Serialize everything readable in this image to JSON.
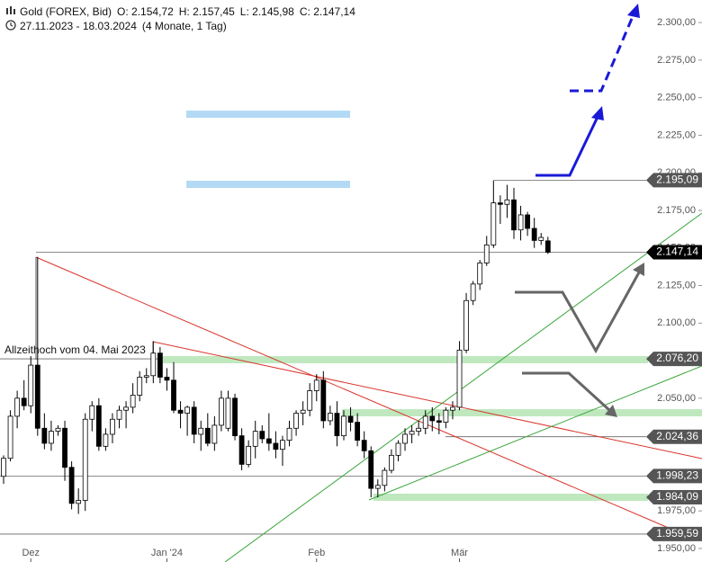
{
  "header": {
    "symbol": "Gold (FOREX, Bid)",
    "open": "O: 2.154,72",
    "high": "H: 2.157,45",
    "low": "L: 2.145,98",
    "close": "C: 2.147,14",
    "range": "27.11.2023 - 18.03.2024",
    "duration": "(4 Monate, 1 Tag)"
  },
  "chart_data": {
    "type": "candlestick",
    "categories": [
      null,
      null,
      null,
      null,
      "Dez",
      null,
      null,
      null,
      null,
      null,
      null,
      null,
      null,
      null,
      null,
      null,
      null,
      null,
      null,
      null,
      null,
      null,
      null,
      null,
      "Jan '24",
      null,
      null,
      null,
      null,
      null,
      null,
      null,
      null,
      null,
      null,
      null,
      null,
      null,
      null,
      null,
      null,
      null,
      null,
      null,
      null,
      null,
      "Feb",
      null,
      null,
      null,
      null,
      null,
      null,
      null,
      null,
      null,
      null,
      null,
      null,
      null,
      null,
      null,
      null,
      null,
      null,
      null,
      null,
      "Mär",
      null,
      null,
      null,
      null,
      null,
      null,
      null,
      null,
      null,
      null,
      null,
      null,
      null
    ],
    "open": [
      1998,
      2010,
      2038,
      2050,
      2045,
      2072,
      2030,
      2020,
      2028,
      2030,
      2004,
      1980,
      1982,
      2036,
      2045,
      2018,
      2026,
      2036,
      2042,
      2044,
      2052,
      2064,
      2065,
      2080,
      2064,
      2062,
      2042,
      2040,
      2044,
      2026,
      2030,
      2020,
      2032,
      2030,
      2050,
      2025,
      2006,
      2018,
      2028,
      2023,
      2020,
      2016,
      2022,
      2030,
      2040,
      2042,
      2055,
      2062,
      2035,
      2040,
      2025,
      2038,
      2034,
      2022,
      2015,
      1990,
      1992,
      2002,
      2012,
      2020,
      2026,
      2028,
      2030,
      2038,
      2035,
      2034,
      2042,
      2044,
      2082,
      2115,
      2126,
      2140,
      2152,
      2180,
      2179,
      2182,
      2162,
      2172,
      2163,
      2155,
      2154.72
    ],
    "high": [
      2012,
      2042,
      2055,
      2062,
      2078,
      2144,
      2040,
      2035,
      2032,
      2035,
      2008,
      1990,
      2040,
      2048,
      2050,
      2030,
      2040,
      2045,
      2048,
      2060,
      2068,
      2070,
      2088,
      2084,
      2070,
      2074,
      2048,
      2045,
      2048,
      2035,
      2040,
      2038,
      2055,
      2055,
      2053,
      2030,
      2022,
      2035,
      2032,
      2040,
      2028,
      2025,
      2035,
      2042,
      2048,
      2060,
      2066,
      2068,
      2045,
      2048,
      2042,
      2044,
      2040,
      2028,
      2018,
      1996,
      2004,
      2016,
      2022,
      2030,
      2032,
      2035,
      2042,
      2044,
      2040,
      2044,
      2048,
      2088,
      2120,
      2128,
      2142,
      2158,
      2195,
      2185,
      2192,
      2190,
      2178,
      2174,
      2170,
      2160,
      2157.45
    ],
    "low": [
      1993,
      2008,
      2030,
      2042,
      2040,
      2025,
      2016,
      2015,
      2025,
      1995,
      1976,
      1973,
      1975,
      2028,
      2015,
      2015,
      2020,
      2030,
      2030,
      2040,
      2048,
      2060,
      2060,
      2060,
      2055,
      2040,
      2030,
      2025,
      2020,
      2015,
      2018,
      2015,
      2028,
      2028,
      2022,
      2002,
      2004,
      2010,
      2020,
      2015,
      2010,
      2005,
      2018,
      2025,
      2032,
      2038,
      2048,
      2030,
      2032,
      2018,
      2022,
      2028,
      2018,
      2010,
      1984,
      1984,
      1988,
      2000,
      2008,
      2015,
      2020,
      2025,
      2026,
      2028,
      2026,
      2030,
      2036,
      2042,
      2080,
      2112,
      2122,
      2138,
      2150,
      2166,
      2170,
      2156,
      2155,
      2158,
      2150,
      2152,
      2145.98
    ],
    "close": [
      2010,
      2038,
      2050,
      2045,
      2072,
      2030,
      2020,
      2028,
      2030,
      2004,
      1980,
      1982,
      2036,
      2045,
      2018,
      2026,
      2036,
      2042,
      2044,
      2052,
      2064,
      2065,
      2080,
      2064,
      2062,
      2042,
      2040,
      2044,
      2026,
      2030,
      2020,
      2032,
      2050,
      2050,
      2025,
      2006,
      2018,
      2028,
      2023,
      2020,
      2016,
      2022,
      2030,
      2040,
      2042,
      2055,
      2062,
      2035,
      2040,
      2025,
      2038,
      2034,
      2022,
      2015,
      1990,
      1992,
      2002,
      2012,
      2020,
      2026,
      2028,
      2030,
      2038,
      2035,
      2034,
      2042,
      2044,
      2082,
      2115,
      2126,
      2140,
      2152,
      2180,
      2179,
      2182,
      2162,
      2172,
      2163,
      2155,
      2157,
      2147.14
    ],
    "ylim": [
      1941,
      2315
    ],
    "yticks": [
      {
        "value": 1950,
        "label": "1.950,00"
      },
      {
        "value": 1975,
        "label": "1.975,00"
      },
      {
        "value": 2000,
        "label": "2.000,00"
      },
      {
        "value": 2025,
        "label": "2.025,00"
      },
      {
        "value": 2050,
        "label": "2.050,00"
      },
      {
        "value": 2075,
        "label": "2.075,00"
      },
      {
        "value": 2100,
        "label": "2.100,00"
      },
      {
        "value": 2125,
        "label": "2.125,00"
      },
      {
        "value": 2150,
        "label": "2.150,00"
      },
      {
        "value": 2175,
        "label": "2.175,00"
      },
      {
        "value": 2200,
        "label": "2.200,00"
      },
      {
        "value": 2225,
        "label": "2.225,00"
      },
      {
        "value": 2250,
        "label": "2.250,00"
      },
      {
        "value": 2275,
        "label": "2.275,00"
      },
      {
        "value": 2300,
        "label": "2.300,00"
      }
    ],
    "price_markers": [
      {
        "value": 2195.09,
        "label": "2.195,09"
      },
      {
        "value": 2147.14,
        "label": "2.147,14"
      },
      {
        "value": 2076.2,
        "label": "2.076,20"
      },
      {
        "value": 2024.36,
        "label": "2.024,36"
      },
      {
        "value": 1998.23,
        "label": "1.998,23"
      },
      {
        "value": 1984.09,
        "label": "1.984,09"
      },
      {
        "value": 1959.59,
        "label": "1.959,59"
      }
    ],
    "current_price": 2147.14,
    "annotation": "Allzeithoch  vom 04. Mai 2023",
    "up_color": "#ffffff",
    "down_color": "#000000"
  }
}
